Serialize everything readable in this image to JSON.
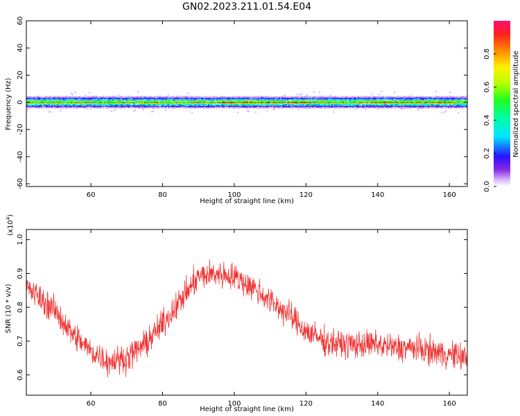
{
  "title": "GN02.2023.211.01.54.E04",
  "chart_data": [
    {
      "type": "heatmap",
      "title": "GN02.2023.211.01.54.E04",
      "xlabel": "Height of straight line (km)",
      "ylabel": "Frequency (Hz)",
      "xlim": [
        42,
        165
      ],
      "ylim": [
        -62,
        60
      ],
      "xticks": [
        60,
        80,
        100,
        120,
        140,
        160
      ],
      "yticks": [
        -60,
        -40,
        -20,
        0,
        20,
        40,
        60
      ],
      "band_center_hz": 0,
      "band_halfwidth_hz": 4,
      "description_rows": [
        {
          "offset_hz": -4,
          "amplitude": 0.05
        },
        {
          "offset_hz": -3,
          "amplitude": 0.15
        },
        {
          "offset_hz": -2,
          "amplitude": 0.3
        },
        {
          "offset_hz": -1,
          "amplitude": 0.5
        },
        {
          "offset_hz": 0,
          "amplitude": 0.75
        },
        {
          "offset_hz": 1,
          "amplitude": 0.5
        },
        {
          "offset_hz": 2,
          "amplitude": 0.3
        },
        {
          "offset_hz": 3,
          "amplitude": 0.15
        },
        {
          "offset_hz": 4,
          "amplitude": 0.05
        }
      ],
      "peak_segments": [
        {
          "x_start": 95,
          "x_end": 123,
          "amplitude": 0.95
        },
        {
          "x_start": 136,
          "x_end": 160,
          "amplitude": 0.92
        }
      ],
      "colorbar": {
        "label": "Normalized spectral amplitude",
        "ticks": [
          0.0,
          0.2,
          0.4,
          0.6,
          0.8
        ],
        "range": [
          0,
          1
        ]
      }
    },
    {
      "type": "line",
      "xlabel": "Height of straight line (km)",
      "ylabel": "SNR (10 * v/v)",
      "multiplier_label": "(x10",
      "multiplier_exponent": "4",
      "xlim": [
        42,
        165
      ],
      "ylim": [
        0.54,
        1.03
      ],
      "xticks": [
        60,
        80,
        100,
        120,
        140,
        160
      ],
      "yticks": [
        0.6,
        0.7,
        0.8,
        0.9,
        1.0
      ],
      "color": "#ef3333",
      "trend_x": [
        42,
        50,
        55,
        60,
        65,
        70,
        75,
        80,
        85,
        90,
        95,
        100,
        105,
        110,
        115,
        120,
        125,
        130,
        135,
        140,
        145,
        150,
        155,
        160,
        165
      ],
      "trend_y": [
        0.86,
        0.79,
        0.72,
        0.67,
        0.64,
        0.65,
        0.69,
        0.75,
        0.82,
        0.89,
        0.9,
        0.89,
        0.86,
        0.82,
        0.78,
        0.73,
        0.7,
        0.69,
        0.69,
        0.69,
        0.68,
        0.68,
        0.67,
        0.66,
        0.65
      ],
      "noise_amplitude": 0.06
    }
  ]
}
